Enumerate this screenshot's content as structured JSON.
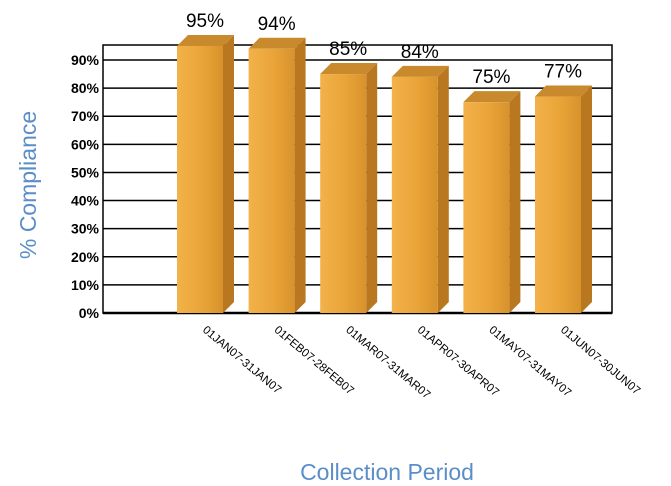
{
  "chart_data": {
    "type": "bar",
    "categories": [
      "01JAN07-31JAN07",
      "01FEB07-28FEB07",
      "01MAR07-31MAR07",
      "01APR07-30APR07",
      "01MAY07-31MAY07",
      "01JUN07-30JUN07"
    ],
    "values": [
      95,
      94,
      85,
      84,
      75,
      77
    ],
    "data_labels": [
      "95%",
      "94%",
      "85%",
      "84%",
      "75%",
      "77%"
    ],
    "title": "",
    "xlabel": "Collection Period",
    "ylabel": "% Compliance",
    "ylim": [
      0,
      90
    ],
    "yticks": [
      0,
      10,
      20,
      30,
      40,
      50,
      60,
      70,
      80,
      90
    ],
    "ytick_labels": [
      "0%",
      "10%",
      "20%",
      "30%",
      "40%",
      "50%",
      "60%",
      "70%",
      "80%",
      "90%"
    ],
    "grid": true,
    "legend": "none",
    "bar_color": "#E8A33A",
    "axis_label_color": "#5B8DC9"
  }
}
